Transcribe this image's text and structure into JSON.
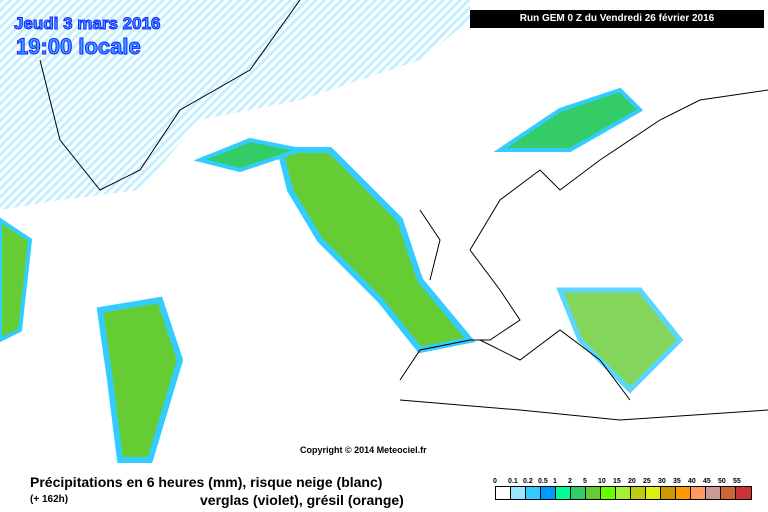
{
  "header": {
    "date": "Jeudi 3 mars 2016",
    "time": "19:00 locale",
    "run": "Run GEM 0 Z du Vendredi 26 février 2016"
  },
  "copyright": "Copyright © 2014 Meteociel.fr",
  "footer": {
    "title": "Précipitations en 6 heures (mm), risque neige (blanc)",
    "lead": "(+ 162h)",
    "subtitle": "verglas (violet), grésil (orange)"
  },
  "legend": {
    "labels": [
      "0",
      "0.1",
      "0.2",
      "0.5",
      "1",
      "2",
      "5",
      "10",
      "15",
      "20",
      "25",
      "30",
      "35",
      "40",
      "45",
      "50",
      "55"
    ],
    "colors": [
      "#ffffff",
      "#99e6ff",
      "#33ccff",
      "#0099ff",
      "#00ff99",
      "#33cc66",
      "#66cc33",
      "#66ff00",
      "#aaee33",
      "#bbcc11",
      "#ddee11",
      "#cc9900",
      "#ff9900",
      "#ff9966",
      "#cc9999",
      "#cc6633",
      "#cc3333"
    ]
  }
}
